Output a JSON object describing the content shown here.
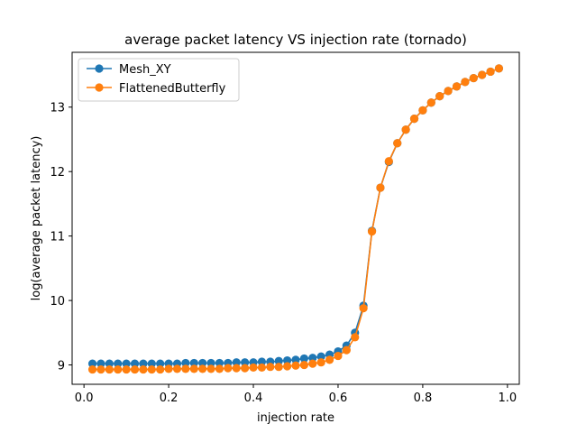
{
  "chart_data": {
    "type": "line",
    "title": "average packet latency VS injection rate (tornado)",
    "xlabel": "injection rate",
    "ylabel": "log(average packet latency)",
    "xlim": [
      -0.028,
      1.028
    ],
    "ylim": [
      8.7,
      13.85
    ],
    "xticks": [
      0,
      0.2,
      0.4,
      0.6,
      0.8,
      1
    ],
    "xtick_labels": [
      "0.0",
      "0.2",
      "0.4",
      "0.6",
      "0.8",
      "1.0"
    ],
    "yticks": [
      9,
      10,
      11,
      12,
      13
    ],
    "ytick_labels": [
      "9",
      "10",
      "11",
      "12",
      "13"
    ],
    "grid": false,
    "legend_position": "top-left",
    "x": [
      0.02,
      0.04,
      0.06,
      0.08,
      0.1,
      0.12,
      0.14,
      0.16,
      0.18,
      0.2,
      0.22,
      0.24,
      0.26,
      0.28,
      0.3,
      0.32,
      0.34,
      0.36,
      0.38,
      0.4,
      0.42,
      0.44,
      0.46,
      0.48,
      0.5,
      0.52,
      0.54,
      0.56,
      0.58,
      0.6,
      0.62,
      0.64,
      0.66,
      0.68,
      0.7,
      0.72,
      0.74,
      0.76,
      0.78,
      0.8,
      0.82,
      0.84,
      0.86,
      0.88,
      0.9,
      0.92,
      0.94,
      0.96,
      0.98
    ],
    "series": [
      {
        "name": "Mesh_XY",
        "color": "#1f77b4",
        "values": [
          9.02,
          9.02,
          9.02,
          9.02,
          9.02,
          9.02,
          9.02,
          9.02,
          9.02,
          9.02,
          9.02,
          9.03,
          9.03,
          9.03,
          9.03,
          9.03,
          9.03,
          9.04,
          9.04,
          9.04,
          9.05,
          9.05,
          9.06,
          9.07,
          9.08,
          9.1,
          9.11,
          9.13,
          9.16,
          9.21,
          9.3,
          9.5,
          9.92,
          11.08,
          11.75,
          12.15,
          12.44,
          12.65,
          12.82,
          12.95,
          13.07,
          13.17,
          13.25,
          13.32,
          13.39,
          13.45,
          13.5,
          13.55,
          13.6
        ]
      },
      {
        "name": "FlattenedButterfly",
        "color": "#ff7f0e",
        "values": [
          8.93,
          8.93,
          8.93,
          8.93,
          8.93,
          8.93,
          8.93,
          8.93,
          8.93,
          8.94,
          8.94,
          8.94,
          8.94,
          8.94,
          8.94,
          8.94,
          8.95,
          8.95,
          8.95,
          8.96,
          8.96,
          8.97,
          8.97,
          8.98,
          8.99,
          9.0,
          9.02,
          9.04,
          9.08,
          9.14,
          9.23,
          9.43,
          9.88,
          11.07,
          11.75,
          12.16,
          12.44,
          12.65,
          12.82,
          12.95,
          13.07,
          13.17,
          13.25,
          13.32,
          13.39,
          13.45,
          13.5,
          13.55,
          13.6
        ]
      }
    ]
  }
}
